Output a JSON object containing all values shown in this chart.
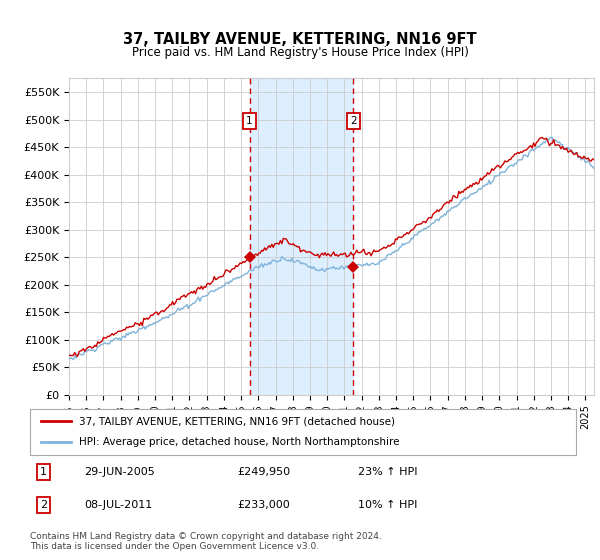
{
  "title": "37, TAILBY AVENUE, KETTERING, NN16 9FT",
  "subtitle": "Price paid vs. HM Land Registry's House Price Index (HPI)",
  "ylabel_ticks": [
    "£0",
    "£50K",
    "£100K",
    "£150K",
    "£200K",
    "£250K",
    "£300K",
    "£350K",
    "£400K",
    "£450K",
    "£500K",
    "£550K"
  ],
  "ytick_values": [
    0,
    50000,
    100000,
    150000,
    200000,
    250000,
    300000,
    350000,
    400000,
    450000,
    500000,
    550000
  ],
  "ylim": [
    0,
    575000
  ],
  "xlim_start": 1995.0,
  "xlim_end": 2025.5,
  "legend_line1": "37, TAILBY AVENUE, KETTERING, NN16 9FT (detached house)",
  "legend_line2": "HPI: Average price, detached house, North Northamptonshire",
  "sale1_date": 2005.49,
  "sale1_price": 249950,
  "sale1_label": "1",
  "sale1_text": "29-JUN-2005",
  "sale1_amount": "£249,950",
  "sale1_hpi": "23% ↑ HPI",
  "sale2_date": 2011.52,
  "sale2_price": 233000,
  "sale2_label": "2",
  "sale2_text": "08-JUL-2011",
  "sale2_amount": "£233,000",
  "sale2_hpi": "10% ↑ HPI",
  "line_color_red": "#cc0000",
  "line_color_blue": "#7fb3d9",
  "shade_color": "#ddeeff",
  "grid_color": "#cccccc",
  "background_color": "#ffffff",
  "marker_y": 500000,
  "footnote": "Contains HM Land Registry data © Crown copyright and database right 2024.\nThis data is licensed under the Open Government Licence v3.0."
}
